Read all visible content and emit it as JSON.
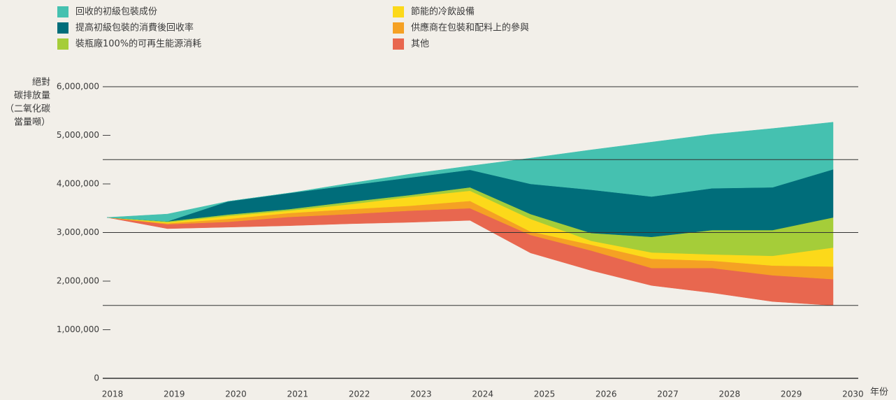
{
  "chart_data": {
    "type": "stacked-area",
    "ylabel": [
      "絕對",
      "碳排放量",
      "（二氧化碳",
      "當量噸）"
    ],
    "xlabel": "年份",
    "categories": [
      "2018",
      "2019",
      "2020",
      "2021",
      "2022",
      "2023",
      "2024",
      "2025",
      "2026",
      "2027",
      "2028",
      "2029",
      "2030"
    ],
    "series": [
      {
        "values": [
          3310000,
          3080000,
          3110000,
          3140000,
          3180000,
          3210000,
          3250000,
          2580000,
          2220000,
          1910000,
          1760000,
          1580000,
          1500000
        ]
      },
      {
        "name": "其他",
        "color": "#e8674f",
        "values": [
          0,
          90000,
          110000,
          180000,
          200000,
          240000,
          250000,
          370000,
          410000,
          360000,
          510000,
          540000,
          540000
        ]
      },
      {
        "name": "供應商在包裝和配料上的參與",
        "color": "#f5a124",
        "values": [
          0,
          20000,
          60000,
          80000,
          100000,
          100000,
          150000,
          70000,
          120000,
          190000,
          150000,
          200000,
          260000
        ]
      },
      {
        "name": "節能的冷飲設備",
        "color": "#fcd91a",
        "values": [
          0,
          20000,
          60000,
          50000,
          100000,
          180000,
          210000,
          260000,
          80000,
          130000,
          130000,
          200000,
          390000
        ]
      },
      {
        "name": "裝瓶廠100%的可再生能源消耗",
        "color": "#a5cd39",
        "values": [
          0,
          20000,
          30000,
          30000,
          50000,
          40000,
          70000,
          100000,
          160000,
          320000,
          500000,
          530000,
          620000
        ]
      },
      {
        "name": "提高初級包裝的消費後回收率",
        "color": "#006d7a",
        "values": [
          0,
          0,
          270000,
          330000,
          340000,
          360000,
          360000,
          620000,
          890000,
          830000,
          860000,
          880000,
          990000
        ]
      },
      {
        "name": "回收的初級包裝成份",
        "color": "#45c1b0",
        "values": [
          0,
          150000,
          0,
          0,
          40000,
          70000,
          80000,
          530000,
          820000,
          1120000,
          1110000,
          1210000,
          970000
        ]
      }
    ],
    "ylim": [
      0,
      6000000
    ],
    "yticks": [
      0,
      {
        "value": 1000000,
        "label": "1,000,000"
      },
      {
        "value": 2000000,
        "label": "2,000,000"
      },
      {
        "value": 3000000,
        "label": "3,000,000"
      },
      {
        "value": 4000000,
        "label": "4,000,000"
      },
      {
        "value": 5000000,
        "label": "5,000,000"
      },
      {
        "value": 6000000,
        "label": "6,000,000"
      }
    ],
    "gridlines": [
      0,
      1500000,
      3000000,
      4500000,
      6000000
    ]
  }
}
